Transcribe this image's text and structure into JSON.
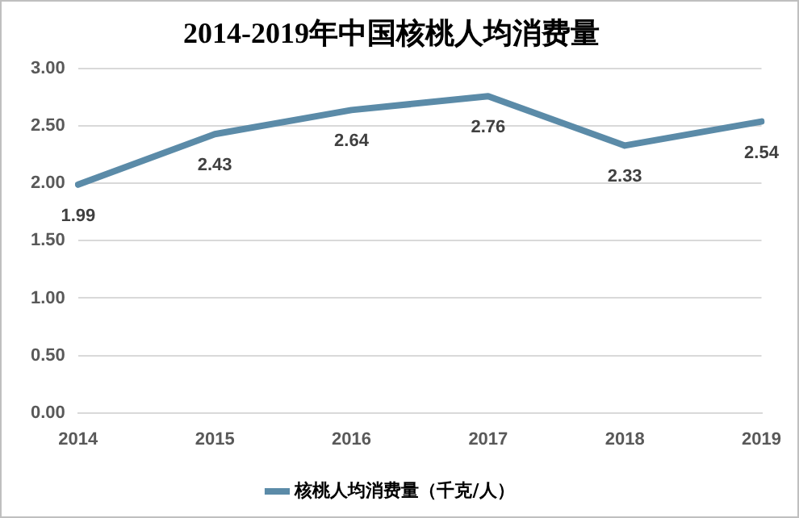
{
  "chart_data": {
    "type": "line",
    "title": "2014-2019年中国核桃人均消费量",
    "categories": [
      "2014",
      "2015",
      "2016",
      "2017",
      "2018",
      "2019"
    ],
    "series": [
      {
        "name": "核桃人均消费量（千克/人）",
        "color": "#5b8ba8",
        "values": [
          1.99,
          2.43,
          2.64,
          2.76,
          2.33,
          2.54
        ]
      }
    ],
    "ylim": [
      0,
      3
    ],
    "yticks": [
      {
        "value": 0,
        "label": "0.00"
      },
      {
        "value": 0.5,
        "label": "0.50"
      },
      {
        "value": 1,
        "label": "1.00"
      },
      {
        "value": 1.5,
        "label": "1.50"
      },
      {
        "value": 2,
        "label": "2.00"
      },
      {
        "value": 2.5,
        "label": "2.50"
      },
      {
        "value": 3,
        "label": "3.00"
      }
    ],
    "grid": "y",
    "legend": "bottom",
    "data_labels": true,
    "marker": "none",
    "line_style": "solid"
  }
}
